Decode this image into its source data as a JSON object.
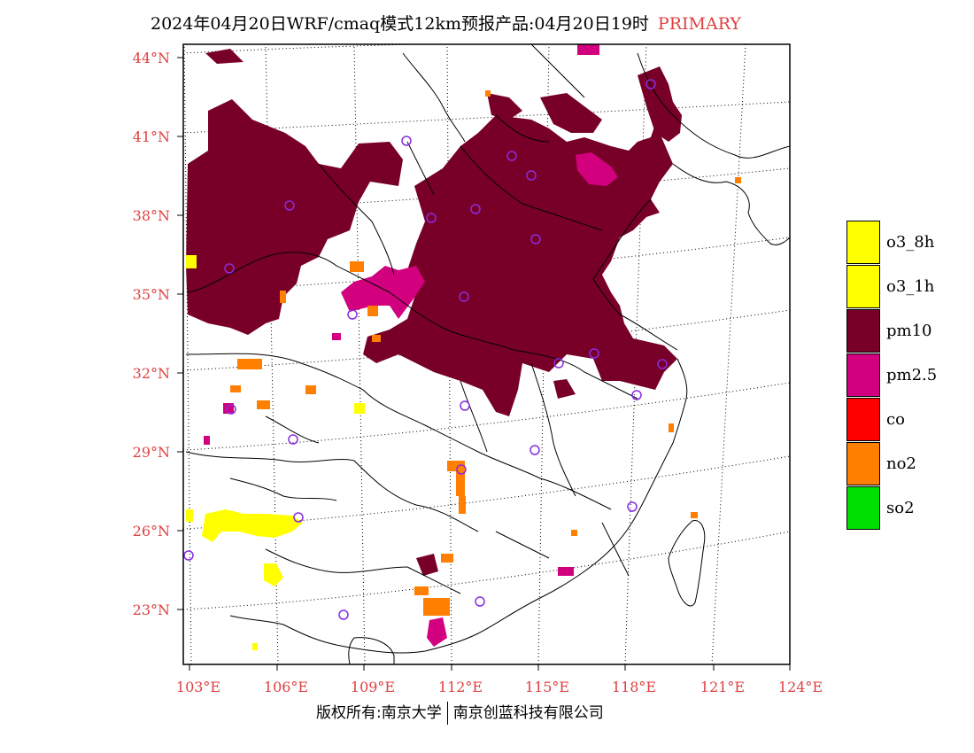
{
  "header": {
    "title": "2024年04月20日WRF/cmaq模式12km预报产品:04月20日19时",
    "tag": "PRIMARY"
  },
  "axes": {
    "lat_labels": [
      "44°N",
      "41°N",
      "38°N",
      "35°N",
      "32°N",
      "29°N",
      "26°N",
      "23°N"
    ],
    "lon_labels": [
      "103°E",
      "106°E",
      "109°E",
      "112°E",
      "115°E",
      "118°E",
      "121°E",
      "124°E"
    ]
  },
  "legend": [
    {
      "label": "o3_8h",
      "color": "#ffff00"
    },
    {
      "label": "o3_1h",
      "color": "#ffff00"
    },
    {
      "label": "pm10",
      "color": "#780028"
    },
    {
      "label": "pm2.5",
      "color": "#d2007e"
    },
    {
      "label": "co",
      "color": "#ff0000"
    },
    {
      "label": "no2",
      "color": "#ff7f00"
    },
    {
      "label": "so2",
      "color": "#00e000"
    }
  ],
  "footer": {
    "left": "版权所有:南京大学",
    "right": "南京创蓝科技有限公司"
  }
}
